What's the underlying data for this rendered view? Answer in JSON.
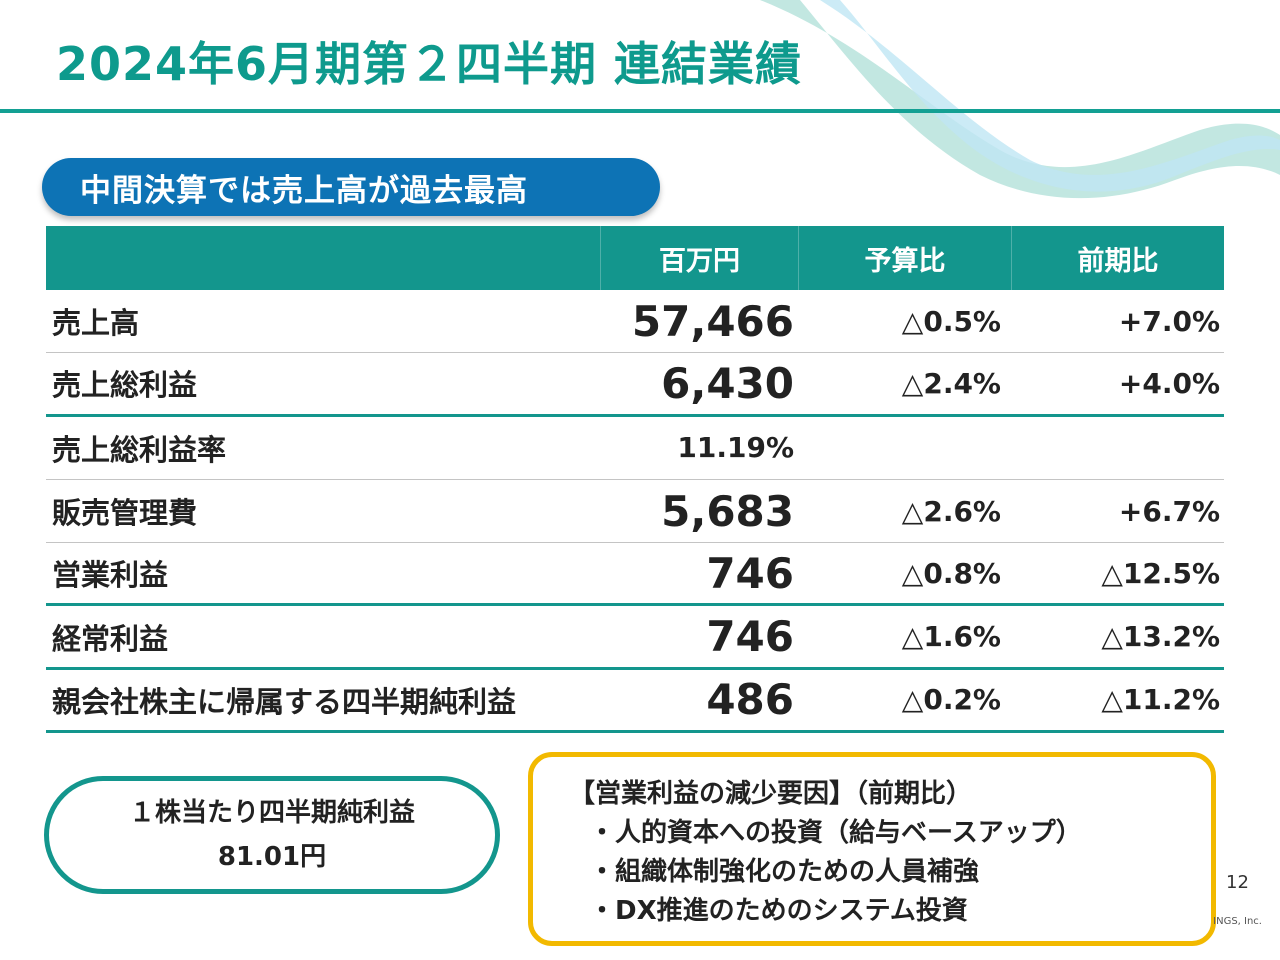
{
  "title": "2024年6月期第２四半期 連結業績",
  "banner": "中間決算では売上高が過去最高",
  "table": {
    "headers": [
      "",
      "百万円",
      "予算比",
      "前期比"
    ],
    "rows": [
      {
        "name": "売上高",
        "value": "57,466",
        "budget": "△0.5%",
        "prior": "+7.0%"
      },
      {
        "name": "売上総利益",
        "value": "6,430",
        "budget": "△2.4%",
        "prior": "+4.0%"
      },
      {
        "name": "売上総利益率",
        "value": "11.19%",
        "budget": "",
        "prior": ""
      },
      {
        "name": "販売管理費",
        "value": "5,683",
        "budget": "△2.6%",
        "prior": "+6.7%"
      },
      {
        "name": "営業利益",
        "value": "746",
        "budget": "△0.8%",
        "prior": "△12.5%"
      },
      {
        "name": "経常利益",
        "value": "746",
        "budget": "△1.6%",
        "prior": "△13.2%"
      },
      {
        "name": "親会社株主に帰属する四半期純利益",
        "value": "486",
        "budget": "△0.2%",
        "prior": "△11.2%"
      }
    ]
  },
  "eps": {
    "label": "１株当たり四半期純利益",
    "value": "81.01円"
  },
  "reasons": {
    "heading": "【営業利益の減少要因】（前期比）",
    "items": [
      "・人的資本への投資（給与ベースアップ）",
      "・組織体制強化のための人員補強",
      "・DX推進のためのシステム投資"
    ]
  },
  "page_number": "12",
  "copyright_fragment": "INGS, Inc.",
  "colors": {
    "teal": "#13968d",
    "blue": "#0d73b5",
    "yellow": "#f2b900"
  }
}
